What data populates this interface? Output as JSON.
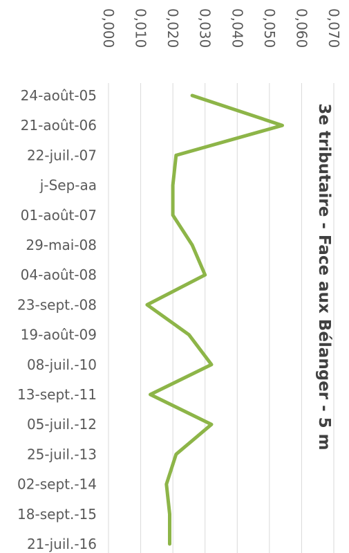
{
  "chart_data": {
    "type": "line",
    "title": "3e tributaire - Face aux Bélanger - 5 m",
    "orientation": "rotated-90-clockwise",
    "categories": [
      "24-août-05",
      "21-août-06",
      "22-juil.-07",
      "j-Sep-aa",
      "01-août-07",
      "29-mai-08",
      "04-août-08",
      "23-sept.-08",
      "19-août-09",
      "08-juil.-10",
      "13-sept.-11",
      "05-juil.-12",
      "25-juil.-13",
      "02-sept.-14",
      "18-sept.-15",
      "21-juil.-16"
    ],
    "series": [
      {
        "values": [
          0.026,
          0.054,
          0.021,
          0.02,
          0.02,
          0.026,
          0.03,
          0.012,
          0.025,
          0.032,
          0.013,
          0.032,
          0.021,
          0.018,
          0.019,
          0.019
        ]
      }
    ],
    "ylim": [
      0,
      0.07
    ],
    "y_ticks": [
      "0,000",
      "0,010",
      "0,020",
      "0,030",
      "0,040",
      "0,050",
      "0,060",
      "0,070"
    ],
    "grid": true,
    "line_color": "#8DB548",
    "grid_color": "#D9D9D9"
  }
}
